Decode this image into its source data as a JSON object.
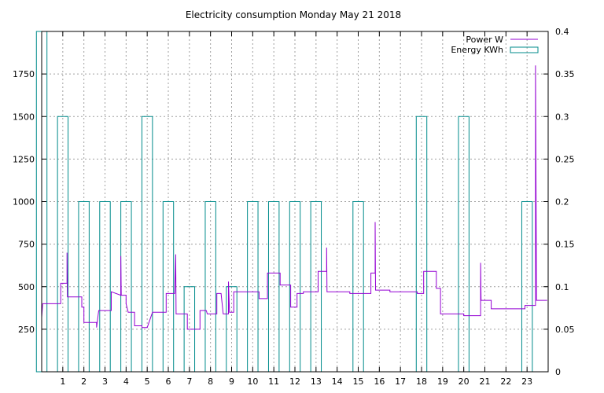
{
  "chart_data": {
    "type": "line",
    "title": "Electricity consumption Monday May 21 2018",
    "xlabel": "",
    "ylabel": "",
    "y2label": "",
    "grid": true,
    "legend_position": "top-right",
    "x_range": [
      0,
      24
    ],
    "x_ticks": [
      1,
      2,
      3,
      4,
      5,
      6,
      7,
      8,
      9,
      10,
      11,
      12,
      13,
      14,
      15,
      16,
      17,
      18,
      19,
      20,
      21,
      22,
      23
    ],
    "y_range": [
      0,
      2000
    ],
    "y_ticks": [
      250,
      500,
      750,
      1000,
      1250,
      1500,
      1750
    ],
    "y2_range": [
      0,
      0.4
    ],
    "y2_ticks": [
      "0",
      "0.05",
      "0.1",
      "0.15",
      "0.2",
      "0.25",
      "0.3",
      "0.35",
      "0.4"
    ],
    "series": [
      {
        "name": "Power W",
        "axis": "y",
        "color": "#9400d3",
        "style": "step-line",
        "points": [
          [
            0.0,
            320
          ],
          [
            0.05,
            400
          ],
          [
            0.9,
            400
          ],
          [
            0.9,
            520
          ],
          [
            1.2,
            520
          ],
          [
            1.2,
            700
          ],
          [
            1.22,
            440
          ],
          [
            1.9,
            440
          ],
          [
            1.9,
            380
          ],
          [
            2.0,
            380
          ],
          [
            2.0,
            290
          ],
          [
            2.6,
            290
          ],
          [
            2.6,
            260
          ],
          [
            2.7,
            360
          ],
          [
            3.3,
            360
          ],
          [
            3.3,
            470
          ],
          [
            3.75,
            450
          ],
          [
            3.75,
            680
          ],
          [
            3.77,
            450
          ],
          [
            4.0,
            450
          ],
          [
            4.0,
            400
          ],
          [
            4.1,
            350
          ],
          [
            4.4,
            350
          ],
          [
            4.4,
            270
          ],
          [
            4.75,
            270
          ],
          [
            4.75,
            260
          ],
          [
            5.0,
            260
          ],
          [
            5.25,
            350
          ],
          [
            5.9,
            350
          ],
          [
            5.9,
            460
          ],
          [
            6.3,
            460
          ],
          [
            6.35,
            690
          ],
          [
            6.37,
            340
          ],
          [
            6.9,
            340
          ],
          [
            6.9,
            250
          ],
          [
            7.5,
            250
          ],
          [
            7.5,
            360
          ],
          [
            7.8,
            360
          ],
          [
            7.85,
            340
          ],
          [
            8.3,
            340
          ],
          [
            8.3,
            460
          ],
          [
            8.5,
            460
          ],
          [
            8.6,
            340
          ],
          [
            8.85,
            340
          ],
          [
            8.85,
            530
          ],
          [
            8.9,
            350
          ],
          [
            9.1,
            350
          ],
          [
            9.1,
            470
          ],
          [
            10.3,
            470
          ],
          [
            10.3,
            430
          ],
          [
            10.7,
            430
          ],
          [
            10.7,
            580
          ],
          [
            11.3,
            580
          ],
          [
            11.3,
            510
          ],
          [
            11.8,
            510
          ],
          [
            11.8,
            380
          ],
          [
            12.1,
            380
          ],
          [
            12.1,
            460
          ],
          [
            12.4,
            460
          ],
          [
            12.4,
            470
          ],
          [
            13.1,
            470
          ],
          [
            13.1,
            590
          ],
          [
            13.5,
            590
          ],
          [
            13.5,
            730
          ],
          [
            13.52,
            470
          ],
          [
            14.6,
            470
          ],
          [
            14.6,
            460
          ],
          [
            15.6,
            460
          ],
          [
            15.6,
            580
          ],
          [
            15.8,
            580
          ],
          [
            15.8,
            880
          ],
          [
            15.82,
            480
          ],
          [
            16.5,
            480
          ],
          [
            16.5,
            470
          ],
          [
            17.8,
            470
          ],
          [
            17.8,
            460
          ],
          [
            18.1,
            460
          ],
          [
            18.1,
            590
          ],
          [
            18.7,
            590
          ],
          [
            18.7,
            490
          ],
          [
            18.9,
            490
          ],
          [
            18.9,
            340
          ],
          [
            20.0,
            340
          ],
          [
            20.0,
            330
          ],
          [
            20.8,
            330
          ],
          [
            20.8,
            640
          ],
          [
            20.82,
            420
          ],
          [
            21.3,
            420
          ],
          [
            21.3,
            370
          ],
          [
            22.9,
            370
          ],
          [
            22.9,
            390
          ],
          [
            23.4,
            390
          ],
          [
            23.4,
            1800
          ],
          [
            23.45,
            420
          ],
          [
            23.95,
            420
          ]
        ]
      },
      {
        "name": "Energy KWh",
        "axis": "y2",
        "color": "#008b8b",
        "style": "boxes",
        "box_width": 0.5,
        "hours": [
          0,
          1,
          2,
          3,
          4,
          5,
          6,
          7,
          8,
          9,
          10,
          11,
          12,
          13,
          14,
          15,
          16,
          17,
          18,
          19,
          20,
          21,
          22,
          23
        ],
        "values": [
          0.4,
          0.3,
          0.2,
          0.2,
          0.2,
          0.3,
          0.2,
          0.1,
          0.2,
          0.1,
          0.2,
          0.2,
          0.2,
          0.2,
          0,
          0.2,
          0,
          0,
          0.3,
          0,
          0.3,
          0,
          0,
          0.2
        ]
      }
    ]
  }
}
